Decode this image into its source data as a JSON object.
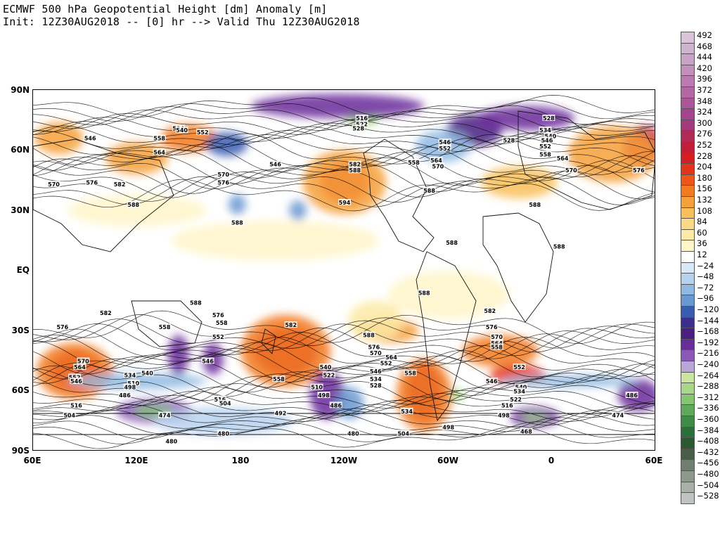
{
  "title": {
    "line1": "ECMWF 500 hPa Geopotential Height [dm] Anomaly [m]",
    "line2": "Init: 12Z30AUG2018 -- [0] hr --> Valid Thu 12Z30AUG2018"
  },
  "map": {
    "projection": "cylindrical equidistant",
    "lon_range": [
      60,
      420
    ],
    "lat_range": [
      -90,
      90
    ],
    "lat_ticks": [
      "90N",
      "60N",
      "30N",
      "EQ",
      "30S",
      "60S",
      "90S"
    ],
    "lon_ticks": [
      "60E",
      "120E",
      "180",
      "120W",
      "60W",
      "0",
      "60E"
    ],
    "contour_labels": [
      {
        "text": "534",
        "lon": 144,
        "lat": 71
      },
      {
        "text": "540",
        "lon": 146,
        "lat": 70
      },
      {
        "text": "552",
        "lon": 158,
        "lat": 69
      },
      {
        "text": "546",
        "lon": 93,
        "lat": 66
      },
      {
        "text": "558",
        "lon": 133,
        "lat": 66
      },
      {
        "text": "564",
        "lon": 133,
        "lat": 59
      },
      {
        "text": "546",
        "lon": 200,
        "lat": 53
      },
      {
        "text": "570",
        "lon": 170,
        "lat": 48
      },
      {
        "text": "576",
        "lon": 170,
        "lat": 44
      },
      {
        "text": "582",
        "lon": 246,
        "lat": 53
      },
      {
        "text": "588",
        "lon": 246,
        "lat": 50
      },
      {
        "text": "594",
        "lon": 240,
        "lat": 34
      },
      {
        "text": "516",
        "lon": 250,
        "lat": 76
      },
      {
        "text": "522",
        "lon": 250,
        "lat": 73
      },
      {
        "text": "528",
        "lon": 248,
        "lat": 71
      },
      {
        "text": "570",
        "lon": 72,
        "lat": 43
      },
      {
        "text": "576",
        "lon": 94,
        "lat": 44
      },
      {
        "text": "582",
        "lon": 110,
        "lat": 43
      },
      {
        "text": "588",
        "lon": 118,
        "lat": 33
      },
      {
        "text": "588",
        "lon": 178,
        "lat": 24
      },
      {
        "text": "558",
        "lon": 280,
        "lat": 54
      },
      {
        "text": "552",
        "lon": 298,
        "lat": 61
      },
      {
        "text": "546",
        "lon": 298,
        "lat": 64
      },
      {
        "text": "564",
        "lon": 293,
        "lat": 55
      },
      {
        "text": "570",
        "lon": 294,
        "lat": 52
      },
      {
        "text": "588",
        "lon": 289,
        "lat": 40
      },
      {
        "text": "588",
        "lon": 302,
        "lat": 14
      },
      {
        "text": "528",
        "lon": 358,
        "lat": 76
      },
      {
        "text": "534",
        "lon": 356,
        "lat": 70
      },
      {
        "text": "540",
        "lon": 359,
        "lat": 67
      },
      {
        "text": "546",
        "lon": 357,
        "lat": 65
      },
      {
        "text": "552",
        "lon": 356,
        "lat": 62
      },
      {
        "text": "558",
        "lon": 356,
        "lat": 58
      },
      {
        "text": "564",
        "lon": 366,
        "lat": 56
      },
      {
        "text": "570",
        "lon": 371,
        "lat": 50
      },
      {
        "text": "576",
        "lon": 410,
        "lat": 50
      },
      {
        "text": "528",
        "lon": 335,
        "lat": 65
      },
      {
        "text": "588",
        "lon": 350,
        "lat": 33
      },
      {
        "text": "588",
        "lon": 364,
        "lat": 12
      },
      {
        "text": "588",
        "lon": 286,
        "lat": -11
      },
      {
        "text": "582",
        "lon": 324,
        "lat": -20
      },
      {
        "text": "582",
        "lon": 102,
        "lat": -21
      },
      {
        "text": "576",
        "lon": 77,
        "lat": -28
      },
      {
        "text": "588",
        "lon": 154,
        "lat": -16
      },
      {
        "text": "576",
        "lon": 167,
        "lat": -22
      },
      {
        "text": "558",
        "lon": 169,
        "lat": -26
      },
      {
        "text": "558",
        "lon": 136,
        "lat": -28
      },
      {
        "text": "552",
        "lon": 167,
        "lat": -33
      },
      {
        "text": "546",
        "lon": 161,
        "lat": -45
      },
      {
        "text": "582",
        "lon": 209,
        "lat": -27
      },
      {
        "text": "558",
        "lon": 202,
        "lat": -54
      },
      {
        "text": "540",
        "lon": 229,
        "lat": -48
      },
      {
        "text": "522",
        "lon": 231,
        "lat": -52
      },
      {
        "text": "510",
        "lon": 224,
        "lat": -58
      },
      {
        "text": "498",
        "lon": 228,
        "lat": -62
      },
      {
        "text": "486",
        "lon": 235,
        "lat": -67
      },
      {
        "text": "588",
        "lon": 254,
        "lat": -32
      },
      {
        "text": "576",
        "lon": 257,
        "lat": -38
      },
      {
        "text": "570",
        "lon": 258,
        "lat": -41
      },
      {
        "text": "564",
        "lon": 267,
        "lat": -43
      },
      {
        "text": "552",
        "lon": 264,
        "lat": -46
      },
      {
        "text": "546",
        "lon": 258,
        "lat": -50
      },
      {
        "text": "534",
        "lon": 258,
        "lat": -54
      },
      {
        "text": "528",
        "lon": 258,
        "lat": -57
      },
      {
        "text": "558",
        "lon": 278,
        "lat": -51
      },
      {
        "text": "576",
        "lon": 325,
        "lat": -28
      },
      {
        "text": "570",
        "lon": 328,
        "lat": -33
      },
      {
        "text": "564",
        "lon": 328,
        "lat": -36
      },
      {
        "text": "558",
        "lon": 328,
        "lat": -38
      },
      {
        "text": "552",
        "lon": 341,
        "lat": -48
      },
      {
        "text": "546",
        "lon": 325,
        "lat": -55
      },
      {
        "text": "540",
        "lon": 342,
        "lat": -58
      },
      {
        "text": "534",
        "lon": 341,
        "lat": -60
      },
      {
        "text": "522",
        "lon": 339,
        "lat": -64
      },
      {
        "text": "516",
        "lon": 334,
        "lat": -67
      },
      {
        "text": "498",
        "lon": 332,
        "lat": -72
      },
      {
        "text": "486",
        "lon": 406,
        "lat": -62
      },
      {
        "text": "474",
        "lon": 398,
        "lat": -72
      },
      {
        "text": "468",
        "lon": 345,
        "lat": -80
      },
      {
        "text": "498",
        "lon": 300,
        "lat": -78
      },
      {
        "text": "504",
        "lon": 274,
        "lat": -81
      },
      {
        "text": "570",
        "lon": 89,
        "lat": -45
      },
      {
        "text": "564",
        "lon": 87,
        "lat": -48
      },
      {
        "text": "552",
        "lon": 84,
        "lat": -53
      },
      {
        "text": "546",
        "lon": 85,
        "lat": -55
      },
      {
        "text": "534",
        "lon": 116,
        "lat": -52
      },
      {
        "text": "540",
        "lon": 126,
        "lat": -51
      },
      {
        "text": "516",
        "lon": 85,
        "lat": -67
      },
      {
        "text": "504",
        "lon": 81,
        "lat": -72
      },
      {
        "text": "510",
        "lon": 118,
        "lat": -56
      },
      {
        "text": "498",
        "lon": 116,
        "lat": -58
      },
      {
        "text": "486",
        "lon": 113,
        "lat": -62
      },
      {
        "text": "474",
        "lon": 136,
        "lat": -72
      },
      {
        "text": "516",
        "lon": 168,
        "lat": -64
      },
      {
        "text": "504",
        "lon": 171,
        "lat": -66
      },
      {
        "text": "492",
        "lon": 203,
        "lat": -71
      },
      {
        "text": "480",
        "lon": 140,
        "lat": -85
      },
      {
        "text": "480",
        "lon": 170,
        "lat": -81
      },
      {
        "text": "480",
        "lon": 245,
        "lat": -81
      },
      {
        "text": "534",
        "lon": 276,
        "lat": -70
      }
    ]
  },
  "colorbar": {
    "levels": [
      "492",
      "468",
      "444",
      "420",
      "396",
      "372",
      "348",
      "324",
      "300",
      "276",
      "252",
      "228",
      "204",
      "180",
      "156",
      "132",
      "108",
      "84",
      "60",
      "36",
      "12",
      "−24",
      "−48",
      "−72",
      "−96",
      "−120",
      "−144",
      "−168",
      "−192",
      "−216",
      "−240",
      "−264",
      "−288",
      "−312",
      "−336",
      "−360",
      "−384",
      "−408",
      "−432",
      "−456",
      "−480",
      "−504",
      "−528"
    ],
    "colors": [
      "#d8c5d8",
      "#cfb4cf",
      "#c9a3c6",
      "#c38fbb",
      "#bc7bb0",
      "#b567a4",
      "#ae5599",
      "#a6438d",
      "#a43a7e",
      "#b02a55",
      "#c21c38",
      "#d41e22",
      "#e5321a",
      "#ee5516",
      "#f27a20",
      "#f6a03a",
      "#f8c05a",
      "#fbda85",
      "#fdeaa6",
      "#fff6c9",
      "#ffffff",
      "#d9e8f7",
      "#b7d2ee",
      "#8fb9e2",
      "#6798d1",
      "#3a5cb0",
      "#3a2f8c",
      "#4b1f82",
      "#6a2c9a",
      "#8b58b8",
      "#b7a6d6",
      "#cbe5a0",
      "#a9d78a",
      "#86c571",
      "#5fa95a",
      "#3e8c48",
      "#2a7038",
      "#2a5a30",
      "#495c48",
      "#707e70",
      "#8e998e",
      "#a8b0a8",
      "#c0c4c0"
    ]
  }
}
